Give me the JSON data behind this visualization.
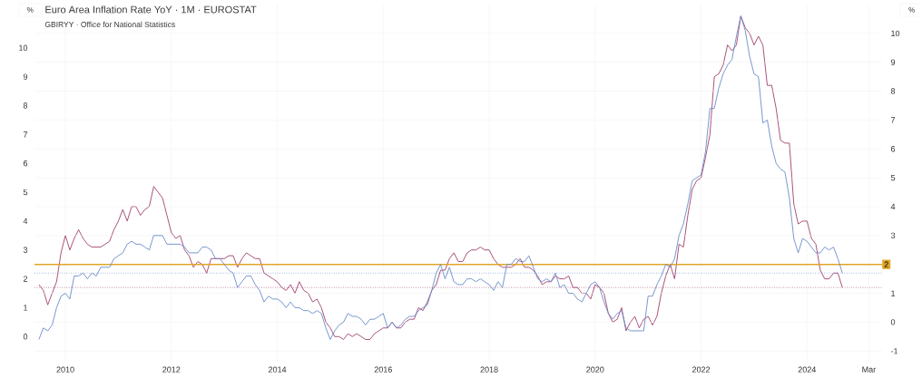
{
  "chart_data": {
    "type": "line",
    "title": "Euro Area Inflation Rate YoY · 1M · EUROSTAT",
    "subtitle": "GBIRYY · Office for National Statistics",
    "ylabel": "%",
    "y2label": "%",
    "x": [
      "2009-07",
      "2009-08",
      "2009-09",
      "2009-10",
      "2009-11",
      "2009-12",
      "2010-01",
      "2010-02",
      "2010-03",
      "2010-04",
      "2010-05",
      "2010-06",
      "2010-07",
      "2010-08",
      "2010-09",
      "2010-10",
      "2010-11",
      "2010-12",
      "2011-01",
      "2011-02",
      "2011-03",
      "2011-04",
      "2011-05",
      "2011-06",
      "2011-07",
      "2011-08",
      "2011-09",
      "2011-10",
      "2011-11",
      "2011-12",
      "2012-01",
      "2012-02",
      "2012-03",
      "2012-04",
      "2012-05",
      "2012-06",
      "2012-07",
      "2012-08",
      "2012-09",
      "2012-10",
      "2012-11",
      "2012-12",
      "2013-01",
      "2013-02",
      "2013-03",
      "2013-04",
      "2013-05",
      "2013-06",
      "2013-07",
      "2013-08",
      "2013-09",
      "2013-10",
      "2013-11",
      "2013-12",
      "2014-01",
      "2014-02",
      "2014-03",
      "2014-04",
      "2014-05",
      "2014-06",
      "2014-07",
      "2014-08",
      "2014-09",
      "2014-10",
      "2014-11",
      "2014-12",
      "2015-01",
      "2015-02",
      "2015-03",
      "2015-04",
      "2015-05",
      "2015-06",
      "2015-07",
      "2015-08",
      "2015-09",
      "2015-10",
      "2015-11",
      "2015-12",
      "2016-01",
      "2016-02",
      "2016-03",
      "2016-04",
      "2016-05",
      "2016-06",
      "2016-07",
      "2016-08",
      "2016-09",
      "2016-10",
      "2016-11",
      "2016-12",
      "2017-01",
      "2017-02",
      "2017-03",
      "2017-04",
      "2017-05",
      "2017-06",
      "2017-07",
      "2017-08",
      "2017-09",
      "2017-10",
      "2017-11",
      "2017-12",
      "2018-01",
      "2018-02",
      "2018-03",
      "2018-04",
      "2018-05",
      "2018-06",
      "2018-07",
      "2018-08",
      "2018-09",
      "2018-10",
      "2018-11",
      "2018-12",
      "2019-01",
      "2019-02",
      "2019-03",
      "2019-04",
      "2019-05",
      "2019-06",
      "2019-07",
      "2019-08",
      "2019-09",
      "2019-10",
      "2019-11",
      "2019-12",
      "2020-01",
      "2020-02",
      "2020-03",
      "2020-04",
      "2020-05",
      "2020-06",
      "2020-07",
      "2020-08",
      "2020-09",
      "2020-10",
      "2020-11",
      "2020-12",
      "2021-01",
      "2021-02",
      "2021-03",
      "2021-04",
      "2021-05",
      "2021-06",
      "2021-07",
      "2021-08",
      "2021-09",
      "2021-10",
      "2021-11",
      "2021-12",
      "2022-01",
      "2022-02",
      "2022-03",
      "2022-04",
      "2022-05",
      "2022-06",
      "2022-07",
      "2022-08",
      "2022-09",
      "2022-10",
      "2022-11",
      "2022-12",
      "2023-01",
      "2023-02",
      "2023-03",
      "2023-04",
      "2023-05",
      "2023-06",
      "2023-07",
      "2023-08",
      "2023-09",
      "2023-10",
      "2023-11",
      "2023-12",
      "2024-01",
      "2024-02",
      "2024-03",
      "2024-04",
      "2024-05",
      "2024-06",
      "2024-07",
      "2024-08",
      "2024-09"
    ],
    "series": [
      {
        "color": "#a0406e",
        "values": [
          1.8,
          1.6,
          1.1,
          1.5,
          1.9,
          2.9,
          3.5,
          3.0,
          3.4,
          3.7,
          3.4,
          3.2,
          3.1,
          3.1,
          3.1,
          3.2,
          3.3,
          3.7,
          4.0,
          4.4,
          4.0,
          4.5,
          4.5,
          4.2,
          4.4,
          4.5,
          5.2,
          5.0,
          4.8,
          4.2,
          3.6,
          3.4,
          3.5,
          3.0,
          2.8,
          2.4,
          2.6,
          2.5,
          2.2,
          2.7,
          2.7,
          2.7,
          2.7,
          2.8,
          2.8,
          2.4,
          2.7,
          2.9,
          2.8,
          2.7,
          2.7,
          2.2,
          2.1,
          2.0,
          1.9,
          1.7,
          1.6,
          1.8,
          1.5,
          1.9,
          1.6,
          1.5,
          1.2,
          1.3,
          1.0,
          0.5,
          0.3,
          0.0,
          0.0,
          -0.1,
          0.1,
          0.0,
          0.1,
          0.0,
          -0.1,
          -0.1,
          0.1,
          0.2,
          0.3,
          0.3,
          0.5,
          0.3,
          0.3,
          0.5,
          0.6,
          0.6,
          1.0,
          0.9,
          1.2,
          1.6,
          1.8,
          2.3,
          2.3,
          2.7,
          2.9,
          2.6,
          2.6,
          2.9,
          3.0,
          3.0,
          3.1,
          3.0,
          3.0,
          2.7,
          2.5,
          2.4,
          2.4,
          2.4,
          2.5,
          2.7,
          2.4,
          2.4,
          2.3,
          2.1,
          1.8,
          1.9,
          1.9,
          2.1,
          2.0,
          2.0,
          2.1,
          1.7,
          1.7,
          1.5,
          1.5,
          1.3,
          1.8,
          1.7,
          1.5,
          0.8,
          0.5,
          0.6,
          1.0,
          0.2,
          0.5,
          0.7,
          0.3,
          0.6,
          0.7,
          0.4,
          0.7,
          1.5,
          2.1,
          2.5,
          2.0,
          3.2,
          3.1,
          4.2,
          5.1,
          5.4,
          5.5,
          6.2,
          7.0,
          9.0,
          9.1,
          9.4,
          10.1,
          9.9,
          10.1,
          11.1,
          10.7,
          10.5,
          10.1,
          10.4,
          10.1,
          8.7,
          8.7,
          7.9,
          6.8,
          6.7,
          6.7,
          4.6,
          3.9,
          4.0,
          4.0,
          3.4,
          3.2,
          2.3,
          2.0,
          2.0,
          2.2,
          2.2,
          1.7
        ]
      },
      {
        "color": "#6a8cc7",
        "axis": "y2",
        "values": [
          -0.6,
          -0.2,
          -0.3,
          -0.1,
          0.5,
          0.9,
          1.0,
          0.8,
          1.6,
          1.6,
          1.7,
          1.5,
          1.7,
          1.6,
          1.9,
          1.9,
          1.9,
          2.2,
          2.3,
          2.4,
          2.7,
          2.8,
          2.7,
          2.7,
          2.6,
          2.5,
          3.0,
          3.0,
          3.0,
          2.7,
          2.7,
          2.7,
          2.7,
          2.6,
          2.4,
          2.4,
          2.4,
          2.6,
          2.6,
          2.5,
          2.2,
          2.2,
          2.0,
          1.8,
          1.7,
          1.2,
          1.4,
          1.6,
          1.6,
          1.3,
          1.1,
          0.7,
          0.9,
          0.8,
          0.8,
          0.7,
          0.5,
          0.7,
          0.5,
          0.5,
          0.4,
          0.4,
          0.3,
          0.4,
          0.3,
          -0.2,
          -0.6,
          -0.3,
          -0.1,
          0.0,
          0.3,
          0.2,
          0.2,
          0.1,
          -0.1,
          0.1,
          0.1,
          0.2,
          0.3,
          -0.2,
          0.0,
          -0.2,
          -0.1,
          0.1,
          0.2,
          0.2,
          0.4,
          0.5,
          0.6,
          1.1,
          1.7,
          2.0,
          1.5,
          1.9,
          1.4,
          1.3,
          1.3,
          1.5,
          1.5,
          1.4,
          1.5,
          1.4,
          1.3,
          1.1,
          1.4,
          1.2,
          2.0,
          2.0,
          2.2,
          2.1,
          2.1,
          2.3,
          1.9,
          1.5,
          1.4,
          1.5,
          1.4,
          1.7,
          1.2,
          1.3,
          1.0,
          1.0,
          0.8,
          0.7,
          1.0,
          1.3,
          1.4,
          1.2,
          0.7,
          0.3,
          0.1,
          0.3,
          0.4,
          -0.2,
          -0.3,
          -0.3,
          -0.3,
          -0.3,
          0.9,
          0.9,
          1.3,
          1.6,
          2.0,
          1.9,
          2.2,
          3.0,
          3.4,
          4.1,
          4.9,
          5.0,
          5.1,
          5.9,
          7.4,
          7.4,
          8.1,
          8.6,
          8.9,
          9.1,
          9.9,
          10.6,
          10.1,
          9.2,
          8.6,
          8.5,
          6.9,
          7.0,
          6.1,
          5.5,
          5.3,
          5.2,
          4.3,
          2.9,
          2.4,
          2.9,
          2.8,
          2.6,
          2.4,
          2.4,
          2.6,
          2.5,
          2.6,
          2.2,
          1.7
        ]
      }
    ],
    "xlim": [
      "2009-06",
      "2025-06"
    ],
    "xticks": [
      "2010",
      "2012",
      "2014",
      "2016",
      "2018",
      "2020",
      "2022",
      "2024",
      {
        "value": "2025-03",
        "label": "Mar"
      }
    ],
    "ylim": [
      -0.9,
      11.5
    ],
    "yticks": [
      0,
      1,
      2,
      3,
      4,
      5,
      6,
      7,
      8,
      9,
      10
    ],
    "y2lim": [
      -1.4,
      11.0
    ],
    "y2ticks": [
      -1,
      0,
      1,
      3,
      4,
      5,
      6,
      7,
      8,
      9,
      10
    ],
    "ref_lines": [
      {
        "axis": "y2",
        "value": 2,
        "label": "2",
        "color": "#e0a526",
        "line_style": "solid"
      },
      {
        "axis": "y2",
        "value": 1.7,
        "color": "#6a8cc7",
        "line_style": "dotted"
      },
      {
        "axis": "y",
        "value": 1.7,
        "color": "#a0406e",
        "line_style": "dotted"
      }
    ],
    "grid": true
  }
}
